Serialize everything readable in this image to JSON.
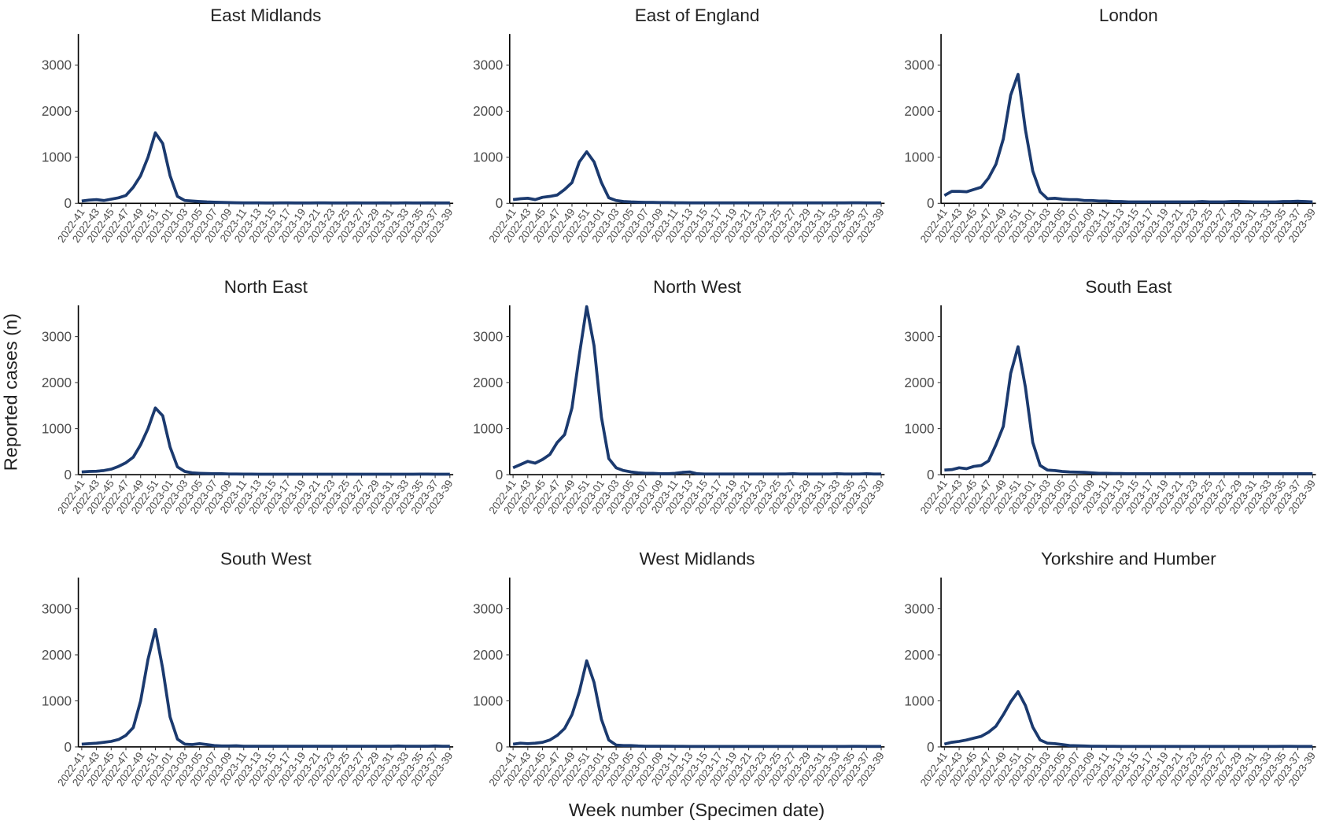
{
  "chart_data": [
    {
      "type": "line",
      "title": "East Midlands",
      "color": "#1b3a6f",
      "ylim": [
        0,
        3680
      ],
      "yticks": [
        0,
        1000,
        2000,
        3000
      ],
      "categories": [
        "2022-41",
        null,
        "2022-43",
        null,
        "2022-45",
        null,
        "2022-47",
        null,
        "2022-49",
        null,
        "2022-51",
        null,
        "2023-01",
        null,
        "2023-03",
        null,
        "2023-05",
        null,
        "2023-07",
        null,
        "2023-09",
        null,
        "2023-11",
        null,
        "2023-13",
        null,
        "2023-15",
        null,
        "2023-17",
        null,
        "2023-19",
        null,
        "2023-21",
        null,
        "2023-23",
        null,
        "2023-25",
        null,
        "2023-27",
        null,
        "2023-29",
        null,
        "2023-31",
        null,
        "2023-33",
        null,
        "2023-35",
        null,
        "2023-37",
        null,
        "2023-39"
      ],
      "values": [
        50,
        70,
        80,
        60,
        90,
        120,
        170,
        350,
        600,
        1000,
        1530,
        1300,
        600,
        150,
        60,
        50,
        40,
        30,
        25,
        20,
        15,
        12,
        10,
        10,
        10,
        8,
        8,
        10,
        10,
        8,
        8,
        8,
        10,
        10,
        8,
        8,
        8,
        10,
        8,
        8,
        8,
        10,
        8,
        8,
        10,
        8,
        8,
        10,
        8,
        8,
        8
      ]
    },
    {
      "type": "line",
      "title": "East of England",
      "color": "#1b3a6f",
      "ylim": [
        0,
        3680
      ],
      "yticks": [
        0,
        1000,
        2000,
        3000
      ],
      "categories": [
        "2022-41",
        null,
        "2022-43",
        null,
        "2022-45",
        null,
        "2022-47",
        null,
        "2022-49",
        null,
        "2022-51",
        null,
        "2023-01",
        null,
        "2023-03",
        null,
        "2023-05",
        null,
        "2023-07",
        null,
        "2023-09",
        null,
        "2023-11",
        null,
        "2023-13",
        null,
        "2023-15",
        null,
        "2023-17",
        null,
        "2023-19",
        null,
        "2023-21",
        null,
        "2023-23",
        null,
        "2023-25",
        null,
        "2023-27",
        null,
        "2023-29",
        null,
        "2023-31",
        null,
        "2023-33",
        null,
        "2023-35",
        null,
        "2023-37",
        null,
        "2023-39"
      ],
      "values": [
        80,
        100,
        110,
        80,
        130,
        150,
        180,
        300,
        450,
        900,
        1120,
        900,
        450,
        120,
        60,
        40,
        30,
        25,
        20,
        20,
        15,
        15,
        12,
        12,
        10,
        10,
        10,
        10,
        10,
        10,
        10,
        10,
        10,
        10,
        10,
        10,
        10,
        10,
        10,
        10,
        10,
        10,
        10,
        10,
        10,
        10,
        12,
        12,
        10,
        10,
        10
      ]
    },
    {
      "type": "line",
      "title": "London",
      "color": "#1b3a6f",
      "ylim": [
        0,
        3680
      ],
      "yticks": [
        0,
        1000,
        2000,
        3000
      ],
      "categories": [
        "2022-41",
        null,
        "2022-43",
        null,
        "2022-45",
        null,
        "2022-47",
        null,
        "2022-49",
        null,
        "2022-51",
        null,
        "2023-01",
        null,
        "2023-03",
        null,
        "2023-05",
        null,
        "2023-07",
        null,
        "2023-09",
        null,
        "2023-11",
        null,
        "2023-13",
        null,
        "2023-15",
        null,
        "2023-17",
        null,
        "2023-19",
        null,
        "2023-21",
        null,
        "2023-23",
        null,
        "2023-25",
        null,
        "2023-27",
        null,
        "2023-29",
        null,
        "2023-31",
        null,
        "2023-33",
        null,
        "2023-35",
        null,
        "2023-37",
        null,
        "2023-39"
      ],
      "values": [
        170,
        260,
        260,
        250,
        300,
        350,
        550,
        850,
        1400,
        2350,
        2800,
        1600,
        700,
        250,
        100,
        110,
        90,
        80,
        80,
        60,
        60,
        50,
        50,
        40,
        40,
        30,
        30,
        30,
        30,
        30,
        30,
        30,
        30,
        30,
        30,
        40,
        30,
        30,
        30,
        40,
        40,
        35,
        30,
        30,
        30,
        30,
        40,
        40,
        45,
        40,
        30
      ]
    },
    {
      "type": "line",
      "title": "North East",
      "color": "#1b3a6f",
      "ylim": [
        0,
        3680
      ],
      "yticks": [
        0,
        1000,
        2000,
        3000
      ],
      "categories": [
        "2022-41",
        null,
        "2022-43",
        null,
        "2022-45",
        null,
        "2022-47",
        null,
        "2022-49",
        null,
        "2022-51",
        null,
        "2023-01",
        null,
        "2023-03",
        null,
        "2023-05",
        null,
        "2023-07",
        null,
        "2023-09",
        null,
        "2023-11",
        null,
        "2023-13",
        null,
        "2023-15",
        null,
        "2023-17",
        null,
        "2023-19",
        null,
        "2023-21",
        null,
        "2023-23",
        null,
        "2023-25",
        null,
        "2023-27",
        null,
        "2023-29",
        null,
        "2023-31",
        null,
        "2023-33",
        null,
        "2023-35",
        null,
        "2023-37",
        null,
        "2023-39"
      ],
      "values": [
        60,
        70,
        75,
        90,
        120,
        180,
        260,
        380,
        650,
        1000,
        1450,
        1280,
        600,
        170,
        70,
        40,
        30,
        25,
        20,
        20,
        15,
        15,
        12,
        12,
        10,
        10,
        10,
        10,
        10,
        10,
        10,
        10,
        10,
        10,
        10,
        10,
        10,
        10,
        10,
        10,
        10,
        10,
        10,
        10,
        10,
        10,
        12,
        12,
        10,
        10,
        10
      ]
    },
    {
      "type": "line",
      "title": "North West",
      "color": "#1b3a6f",
      "ylim": [
        0,
        3680
      ],
      "yticks": [
        0,
        1000,
        2000,
        3000
      ],
      "categories": [
        "2022-41",
        null,
        "2022-43",
        null,
        "2022-45",
        null,
        "2022-47",
        null,
        "2022-49",
        null,
        "2022-51",
        null,
        "2023-01",
        null,
        "2023-03",
        null,
        "2023-05",
        null,
        "2023-07",
        null,
        "2023-09",
        null,
        "2023-11",
        null,
        "2023-13",
        null,
        "2023-15",
        null,
        "2023-17",
        null,
        "2023-19",
        null,
        "2023-21",
        null,
        "2023-23",
        null,
        "2023-25",
        null,
        "2023-27",
        null,
        "2023-29",
        null,
        "2023-31",
        null,
        "2023-33",
        null,
        "2023-35",
        null,
        "2023-37",
        null,
        "2023-39"
      ],
      "values": [
        150,
        220,
        290,
        250,
        330,
        440,
        700,
        870,
        1450,
        2600,
        3650,
        2800,
        1250,
        350,
        150,
        90,
        60,
        40,
        30,
        30,
        20,
        20,
        30,
        50,
        60,
        20,
        15,
        15,
        15,
        15,
        15,
        15,
        15,
        15,
        15,
        15,
        15,
        15,
        20,
        15,
        15,
        15,
        15,
        15,
        20,
        15,
        15,
        15,
        20,
        15,
        15
      ]
    },
    {
      "type": "line",
      "title": "South East",
      "color": "#1b3a6f",
      "ylim": [
        0,
        3680
      ],
      "yticks": [
        0,
        1000,
        2000,
        3000
      ],
      "categories": [
        "2022-41",
        null,
        "2022-43",
        null,
        "2022-45",
        null,
        "2022-47",
        null,
        "2022-49",
        null,
        "2022-51",
        null,
        "2023-01",
        null,
        "2023-03",
        null,
        "2023-05",
        null,
        "2023-07",
        null,
        "2023-09",
        null,
        "2023-11",
        null,
        "2023-13",
        null,
        "2023-15",
        null,
        "2023-17",
        null,
        "2023-19",
        null,
        "2023-21",
        null,
        "2023-23",
        null,
        "2023-25",
        null,
        "2023-27",
        null,
        "2023-29",
        null,
        "2023-31",
        null,
        "2023-33",
        null,
        "2023-35",
        null,
        "2023-37",
        null,
        "2023-39"
      ],
      "values": [
        100,
        110,
        150,
        130,
        180,
        200,
        300,
        650,
        1050,
        2200,
        2780,
        1900,
        700,
        200,
        100,
        90,
        70,
        60,
        55,
        50,
        40,
        30,
        30,
        25,
        25,
        20,
        20,
        20,
        20,
        20,
        20,
        20,
        20,
        20,
        20,
        20,
        20,
        20,
        20,
        20,
        20,
        20,
        20,
        20,
        20,
        20,
        20,
        20,
        20,
        20,
        20
      ]
    },
    {
      "type": "line",
      "title": "South West",
      "color": "#1b3a6f",
      "ylim": [
        0,
        3680
      ],
      "yticks": [
        0,
        1000,
        2000,
        3000
      ],
      "categories": [
        "2022-41",
        null,
        "2022-43",
        null,
        "2022-45",
        null,
        "2022-47",
        null,
        "2022-49",
        null,
        "2022-51",
        null,
        "2023-01",
        null,
        "2023-03",
        null,
        "2023-05",
        null,
        "2023-07",
        null,
        "2023-09",
        null,
        "2023-11",
        null,
        "2023-13",
        null,
        "2023-15",
        null,
        "2023-17",
        null,
        "2023-19",
        null,
        "2023-21",
        null,
        "2023-23",
        null,
        "2023-25",
        null,
        "2023-27",
        null,
        "2023-29",
        null,
        "2023-31",
        null,
        "2023-33",
        null,
        "2023-35",
        null,
        "2023-37",
        null,
        "2023-39"
      ],
      "values": [
        60,
        70,
        80,
        100,
        120,
        160,
        250,
        420,
        1000,
        1900,
        2550,
        1700,
        650,
        170,
        60,
        50,
        70,
        50,
        30,
        20,
        20,
        25,
        15,
        15,
        15,
        15,
        15,
        15,
        15,
        15,
        15,
        15,
        15,
        15,
        15,
        15,
        15,
        15,
        15,
        15,
        15,
        15,
        15,
        20,
        15,
        15,
        15,
        15,
        20,
        15,
        15
      ]
    },
    {
      "type": "line",
      "title": "West Midlands",
      "color": "#1b3a6f",
      "ylim": [
        0,
        3680
      ],
      "yticks": [
        0,
        1000,
        2000,
        3000
      ],
      "categories": [
        "2022-41",
        null,
        "2022-43",
        null,
        "2022-45",
        null,
        "2022-47",
        null,
        "2022-49",
        null,
        "2022-51",
        null,
        "2023-01",
        null,
        "2023-03",
        null,
        "2023-05",
        null,
        "2023-07",
        null,
        "2023-09",
        null,
        "2023-11",
        null,
        "2023-13",
        null,
        "2023-15",
        null,
        "2023-17",
        null,
        "2023-19",
        null,
        "2023-21",
        null,
        "2023-23",
        null,
        "2023-25",
        null,
        "2023-27",
        null,
        "2023-29",
        null,
        "2023-31",
        null,
        "2023-33",
        null,
        "2023-35",
        null,
        "2023-37",
        null,
        "2023-39"
      ],
      "values": [
        60,
        80,
        70,
        80,
        100,
        150,
        250,
        400,
        700,
        1200,
        1870,
        1400,
        600,
        150,
        40,
        30,
        30,
        20,
        15,
        15,
        15,
        15,
        12,
        12,
        10,
        10,
        10,
        10,
        10,
        10,
        10,
        10,
        10,
        10,
        10,
        10,
        10,
        10,
        10,
        10,
        10,
        10,
        10,
        10,
        10,
        10,
        12,
        12,
        10,
        10,
        10
      ]
    },
    {
      "type": "line",
      "title": "Yorkshire and Humber",
      "color": "#1b3a6f",
      "ylim": [
        0,
        3680
      ],
      "yticks": [
        0,
        1000,
        2000,
        3000
      ],
      "categories": [
        "2022-41",
        null,
        "2022-43",
        null,
        "2022-45",
        null,
        "2022-47",
        null,
        "2022-49",
        null,
        "2022-51",
        null,
        "2023-01",
        null,
        "2023-03",
        null,
        "2023-05",
        null,
        "2023-07",
        null,
        "2023-09",
        null,
        "2023-11",
        null,
        "2023-13",
        null,
        "2023-15",
        null,
        "2023-17",
        null,
        "2023-19",
        null,
        "2023-21",
        null,
        "2023-23",
        null,
        "2023-25",
        null,
        "2023-27",
        null,
        "2023-29",
        null,
        "2023-31",
        null,
        "2023-33",
        null,
        "2023-35",
        null,
        "2023-37",
        null,
        "2023-39"
      ],
      "values": [
        60,
        100,
        120,
        150,
        190,
        230,
        320,
        450,
        700,
        980,
        1200,
        900,
        430,
        150,
        80,
        70,
        50,
        30,
        25,
        20,
        15,
        15,
        12,
        12,
        10,
        10,
        10,
        10,
        10,
        10,
        10,
        10,
        10,
        10,
        10,
        10,
        10,
        10,
        10,
        10,
        10,
        10,
        10,
        10,
        10,
        10,
        12,
        12,
        10,
        10,
        10
      ]
    }
  ],
  "y_label": "Reported cases (n)",
  "x_label": "Week number (Specimen date)"
}
